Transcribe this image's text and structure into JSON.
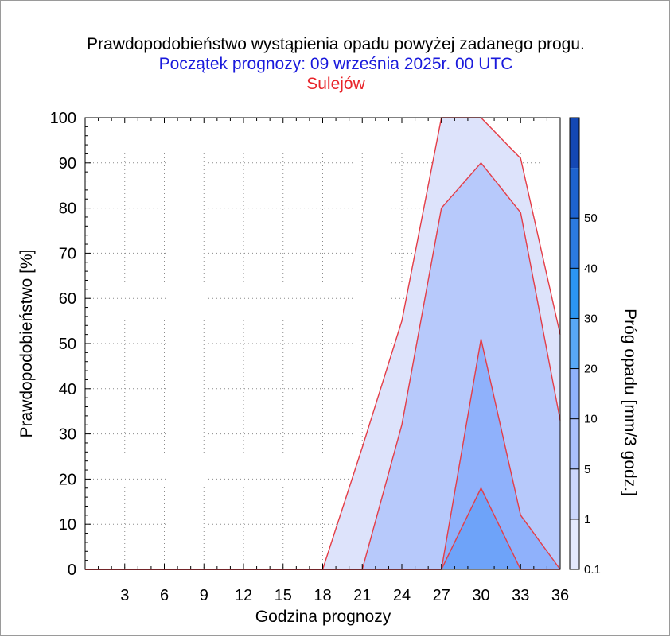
{
  "chart_data": {
    "type": "area",
    "title": "Prawdopodobieństwo wystąpienia opadu powyżej zadanego progu.",
    "subtitle": "Początek prognozy: 09 września 2025r. 00 UTC",
    "location": "Sulejów",
    "xlabel": "Godzina prognozy",
    "ylabel": "Prawdopodobieństwo [%]",
    "colorbar_label": "Próg opadu [mm/3 godz.]",
    "xlim": [
      0,
      36
    ],
    "ylim": [
      0,
      100
    ],
    "x_ticks": [
      3,
      6,
      9,
      12,
      15,
      18,
      21,
      24,
      27,
      30,
      33,
      36
    ],
    "y_ticks": [
      0,
      10,
      20,
      30,
      40,
      50,
      60,
      70,
      80,
      90,
      100
    ],
    "grid": "dotted",
    "x": [
      0,
      3,
      6,
      9,
      12,
      15,
      18,
      21,
      24,
      27,
      30,
      33,
      36
    ],
    "series": [
      {
        "threshold": "0.1",
        "color": "#dde3fb",
        "values": [
          0,
          0,
          0,
          0,
          0,
          0,
          0,
          27,
          55,
          100,
          100,
          91,
          52
        ]
      },
      {
        "threshold": "1",
        "color": "#b7c9fb",
        "values": [
          0,
          0,
          0,
          0,
          0,
          0,
          0,
          0,
          32,
          80,
          90,
          79,
          33
        ]
      },
      {
        "threshold": "5",
        "color": "#8fb1fb",
        "values": [
          0,
          0,
          0,
          0,
          0,
          0,
          0,
          0,
          0,
          0,
          51,
          12,
          0
        ]
      },
      {
        "threshold": "10",
        "color": "#6ea3f9",
        "values": [
          0,
          0,
          0,
          0,
          0,
          0,
          0,
          0,
          0,
          0,
          18,
          0,
          0
        ]
      }
    ],
    "colorbar": {
      "labels": [
        "0.1",
        "1",
        "5",
        "10",
        "20",
        "30",
        "40",
        "50"
      ],
      "colors": [
        "#e4e9fd",
        "#ccd7fc",
        "#aabffb",
        "#8fb1fb",
        "#58a8f7",
        "#2b95f2",
        "#2b7ae0",
        "#1d63d0",
        "#1448b4"
      ]
    }
  }
}
